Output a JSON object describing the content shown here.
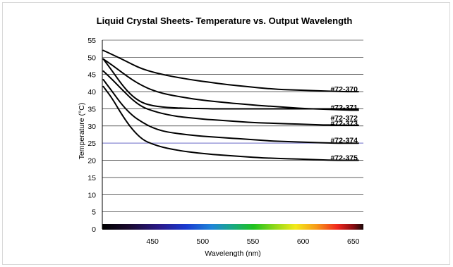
{
  "chart_data": {
    "type": "line",
    "title": "Liquid Crystal Sheets- Temperature vs. Output Wavelength",
    "xlabel": "Wavelength (nm)",
    "ylabel": "Temperature (°C)",
    "xlim": [
      400,
      660
    ],
    "ylim": [
      0,
      55
    ],
    "x_ticks": [
      450,
      500,
      550,
      600,
      650
    ],
    "y_ticks": [
      0,
      5,
      10,
      15,
      20,
      25,
      30,
      35,
      40,
      45,
      50,
      55
    ],
    "grid": "horizontal",
    "spectrum_bar": true,
    "highlight_lines": {
      "y_values": [
        25
      ],
      "color": "#6b6bc8"
    },
    "series": [
      {
        "name": "#72-370",
        "x": [
          401,
          410,
          420,
          430,
          440,
          450,
          460,
          470,
          480,
          490,
          500,
          510,
          520,
          530,
          540,
          550,
          560,
          570,
          580,
          590,
          600,
          610,
          620,
          630,
          640,
          650,
          655
        ],
        "y": [
          52,
          50.8,
          49.4,
          47.9,
          46.6,
          45.7,
          45.0,
          44.4,
          43.9,
          43.4,
          43.0,
          42.6,
          42.2,
          41.9,
          41.6,
          41.3,
          41.0,
          40.8,
          40.6,
          40.5,
          40.4,
          40.3,
          40.2,
          40.1,
          40.0,
          40.0,
          40.0
        ]
      },
      {
        "name": "#72-371",
        "x": [
          401,
          410,
          420,
          430,
          440,
          450,
          460,
          470,
          480,
          490,
          500,
          510,
          520,
          530,
          540,
          550,
          560,
          570,
          580,
          590,
          600,
          610,
          620,
          630,
          640,
          650,
          655
        ],
        "y": [
          49.5,
          47.7,
          45.5,
          43.4,
          41.7,
          40.4,
          39.5,
          38.9,
          38.4,
          37.9,
          37.5,
          37.2,
          36.9,
          36.6,
          36.4,
          36.1,
          35.9,
          35.7,
          35.5,
          35.3,
          35.1,
          35.0,
          34.9,
          34.8,
          34.7,
          34.6,
          34.6
        ]
      },
      {
        "name": "#72-372",
        "x": [
          401,
          410,
          420,
          430,
          440,
          450,
          460,
          470,
          480,
          490,
          500,
          510,
          520,
          530,
          540,
          550,
          560,
          570,
          580,
          590,
          600,
          610,
          620,
          630,
          640,
          650,
          655
        ],
        "y": [
          49.5,
          46.0,
          41.8,
          38.6,
          36.7,
          35.9,
          35.5,
          35.3,
          35.2,
          35.1,
          35.1,
          35.0,
          35.0,
          35.0,
          35.0,
          35.0,
          35.0,
          35.0,
          35.0,
          35.0,
          35.0,
          35.0,
          35.0,
          35.0,
          35.0,
          35.0,
          35.0
        ]
      },
      {
        "name": "#72-373",
        "x": [
          401,
          410,
          420,
          430,
          440,
          450,
          460,
          470,
          480,
          490,
          500,
          510,
          520,
          530,
          540,
          550,
          560,
          570,
          580,
          590,
          600,
          610,
          620,
          630,
          640,
          650,
          655
        ],
        "y": [
          46.0,
          43.5,
          40.5,
          37.6,
          35.5,
          34.4,
          33.6,
          33.0,
          32.6,
          32.3,
          32.0,
          31.8,
          31.6,
          31.4,
          31.2,
          31.0,
          30.9,
          30.8,
          30.7,
          30.6,
          30.5,
          30.4,
          30.3,
          30.3,
          30.2,
          30.2,
          30.2
        ]
      },
      {
        "name": "#72-374",
        "x": [
          401,
          410,
          420,
          430,
          440,
          450,
          460,
          470,
          480,
          490,
          500,
          510,
          520,
          530,
          540,
          550,
          560,
          570,
          580,
          590,
          600,
          610,
          620,
          630,
          640,
          650,
          655
        ],
        "y": [
          43.5,
          40.0,
          36.0,
          33.0,
          31.0,
          29.5,
          28.5,
          28.0,
          27.6,
          27.3,
          27.0,
          26.8,
          26.6,
          26.4,
          26.2,
          26.0,
          25.8,
          25.6,
          25.5,
          25.4,
          25.3,
          25.2,
          25.1,
          25.0,
          25.0,
          25.0,
          25.0
        ]
      },
      {
        "name": "#72-375",
        "x": [
          401,
          410,
          420,
          430,
          440,
          450,
          460,
          470,
          480,
          490,
          500,
          510,
          520,
          530,
          540,
          550,
          560,
          570,
          580,
          590,
          600,
          610,
          620,
          630,
          640,
          650,
          655
        ],
        "y": [
          41.5,
          38.0,
          33.0,
          28.9,
          26.0,
          24.7,
          23.8,
          23.2,
          22.7,
          22.3,
          22.0,
          21.7,
          21.5,
          21.3,
          21.1,
          20.9,
          20.7,
          20.6,
          20.5,
          20.4,
          20.3,
          20.2,
          20.1,
          20.0,
          20.0,
          20.0,
          20.0
        ]
      }
    ],
    "label_values": [
      40.8,
      35.5,
      32.4,
      30.9,
      26.0,
      20.8
    ]
  }
}
